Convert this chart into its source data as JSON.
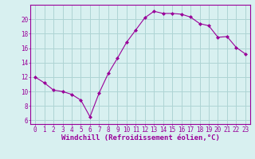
{
  "x": [
    0,
    1,
    2,
    3,
    4,
    5,
    6,
    7,
    8,
    9,
    10,
    11,
    12,
    13,
    14,
    15,
    16,
    17,
    18,
    19,
    20,
    21,
    22,
    23
  ],
  "y": [
    12.0,
    11.2,
    10.2,
    10.0,
    9.6,
    8.8,
    6.5,
    9.8,
    12.5,
    14.6,
    16.8,
    18.5,
    20.2,
    21.1,
    20.8,
    20.8,
    20.7,
    20.3,
    19.4,
    19.1,
    17.5,
    17.6,
    16.1,
    15.2
  ],
  "line_color": "#990099",
  "marker": "D",
  "marker_size": 2,
  "bg_color": "#d8f0f0",
  "grid_color": "#aed4d4",
  "axis_color": "#990099",
  "xlabel": "Windchill (Refroidissement éolien,°C)",
  "ylabel": "",
  "xlim": [
    -0.5,
    23.5
  ],
  "ylim": [
    5.5,
    22.0
  ],
  "yticks": [
    6,
    8,
    10,
    12,
    14,
    16,
    18,
    20
  ],
  "xticks": [
    0,
    1,
    2,
    3,
    4,
    5,
    6,
    7,
    8,
    9,
    10,
    11,
    12,
    13,
    14,
    15,
    16,
    17,
    18,
    19,
    20,
    21,
    22,
    23
  ],
  "tick_fontsize": 5.5,
  "xlabel_fontsize": 6.5
}
